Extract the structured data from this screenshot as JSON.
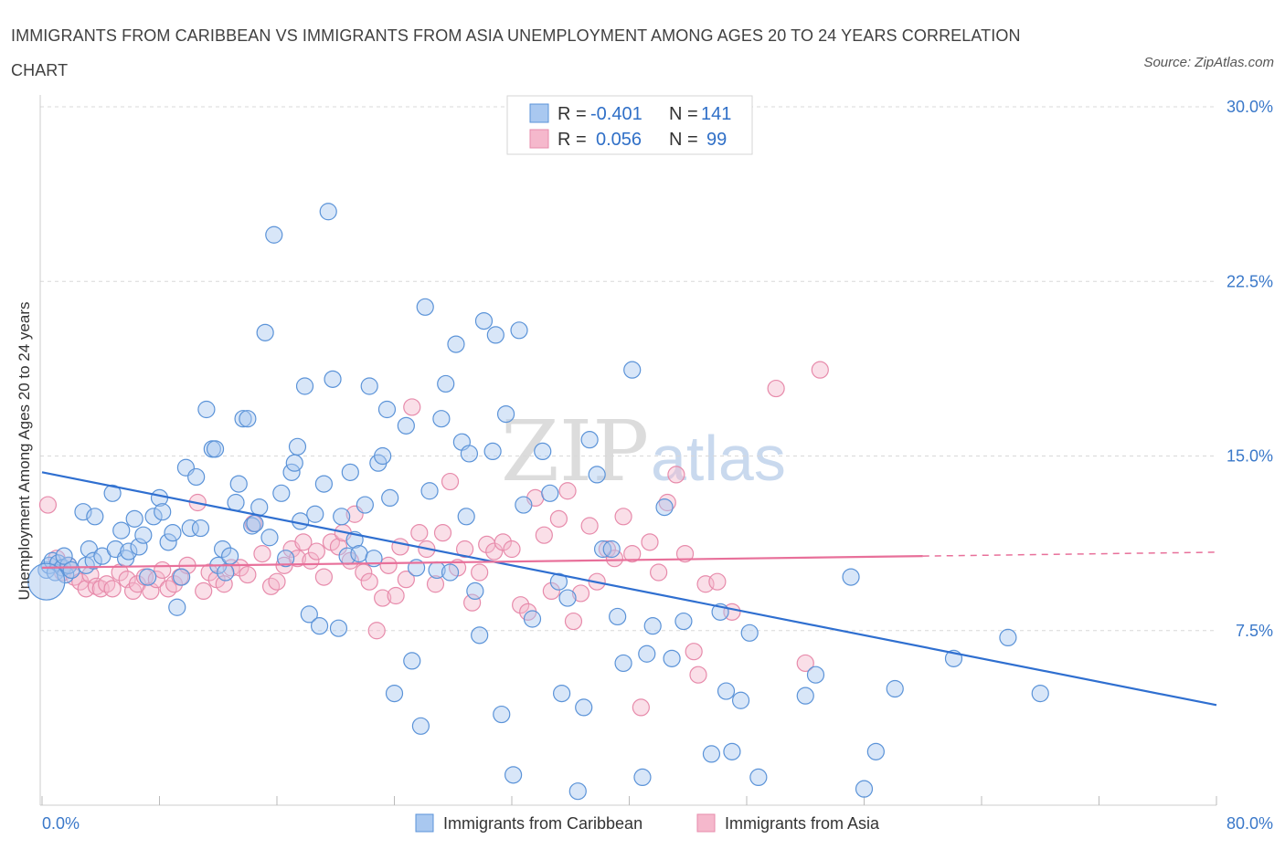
{
  "header": {
    "title": "IMMIGRANTS FROM CARIBBEAN VS IMMIGRANTS FROM ASIA UNEMPLOYMENT AMONG AGES 20 TO 24 YEARS CORRELATION CHART",
    "source": "Source: ZipAtlas.com"
  },
  "watermark": {
    "zip": "ZIP",
    "atlas": "atlas"
  },
  "legend": {
    "r_label": "R =",
    "n_label": "N =",
    "series": [
      {
        "r": "-0.401",
        "n": "141"
      },
      {
        "r": "0.056",
        "n": "99"
      }
    ]
  },
  "bottom_legend": [
    "Immigrants from Caribbean",
    "Immigrants from Asia"
  ],
  "colors": {
    "caribbean_fill": "#a9c8f0",
    "caribbean_stroke": "#5b93d8",
    "caribbean_line": "#2f6fd0",
    "asia_fill": "#f5b8cc",
    "asia_stroke": "#e78bab",
    "asia_line": "#e8709a",
    "axis_text": "#3a78c9",
    "grid": "#d8d8d8"
  },
  "chart_data": {
    "type": "scatter",
    "title": "IMMIGRANTS FROM CARIBBEAN VS IMMIGRANTS FROM ASIA UNEMPLOYMENT AMONG AGES 20 TO 24 YEARS CORRELATION CHART",
    "xlabel": "",
    "ylabel": "Unemployment Among Ages 20 to 24 years",
    "xlim": [
      0,
      80
    ],
    "ylim": [
      0,
      30
    ],
    "x_ticks": [
      "0.0%",
      "80.0%"
    ],
    "y_ticks": [
      "7.5%",
      "15.0%",
      "22.5%",
      "30.0%"
    ],
    "y_tick_values": [
      7.5,
      15.0,
      22.5,
      30.0
    ],
    "grid": true,
    "legend_position": "top-center",
    "series": [
      {
        "name": "Immigrants from Caribbean",
        "r": -0.401,
        "n": 141,
        "trend": {
          "x": [
            0,
            80
          ],
          "y": [
            14.3,
            4.3
          ]
        },
        "points": [
          [
            0.3,
            10.1
          ],
          [
            0.5,
            10.3
          ],
          [
            0.7,
            10.5
          ],
          [
            0.9,
            10.0
          ],
          [
            1.1,
            10.4
          ],
          [
            1.4,
            10.2
          ],
          [
            1.6,
            9.9
          ],
          [
            1.8,
            10.3
          ],
          [
            1.5,
            10.7
          ],
          [
            2.0,
            10.1
          ],
          [
            2.8,
            12.6
          ],
          [
            3.0,
            10.3
          ],
          [
            3.2,
            11.0
          ],
          [
            3.5,
            10.5
          ],
          [
            3.6,
            12.4
          ],
          [
            4.1,
            10.7
          ],
          [
            4.8,
            13.4
          ],
          [
            5.0,
            11.0
          ],
          [
            5.4,
            11.8
          ],
          [
            5.7,
            10.6
          ],
          [
            5.9,
            10.9
          ],
          [
            6.3,
            12.3
          ],
          [
            6.6,
            11.1
          ],
          [
            6.9,
            11.6
          ],
          [
            7.2,
            9.8
          ],
          [
            7.6,
            12.4
          ],
          [
            8.0,
            13.2
          ],
          [
            8.2,
            12.6
          ],
          [
            8.6,
            11.3
          ],
          [
            8.9,
            11.7
          ],
          [
            9.2,
            8.5
          ],
          [
            9.5,
            9.8
          ],
          [
            9.8,
            14.5
          ],
          [
            10.1,
            11.9
          ],
          [
            10.5,
            14.1
          ],
          [
            10.8,
            11.9
          ],
          [
            11.2,
            17.0
          ],
          [
            11.6,
            15.3
          ],
          [
            11.8,
            15.3
          ],
          [
            12.0,
            10.3
          ],
          [
            12.3,
            11.0
          ],
          [
            12.5,
            10.0
          ],
          [
            12.8,
            10.7
          ],
          [
            13.2,
            13.0
          ],
          [
            13.4,
            13.8
          ],
          [
            13.7,
            16.6
          ],
          [
            14.0,
            16.6
          ],
          [
            14.3,
            12.0
          ],
          [
            14.5,
            12.1
          ],
          [
            14.8,
            12.8
          ],
          [
            15.2,
            20.3
          ],
          [
            15.5,
            11.5
          ],
          [
            15.8,
            24.5
          ],
          [
            16.3,
            13.4
          ],
          [
            16.6,
            10.6
          ],
          [
            17.0,
            14.3
          ],
          [
            17.2,
            14.7
          ],
          [
            17.4,
            15.4
          ],
          [
            17.6,
            12.2
          ],
          [
            17.9,
            18.0
          ],
          [
            18.2,
            8.2
          ],
          [
            18.6,
            12.5
          ],
          [
            18.9,
            7.7
          ],
          [
            19.2,
            13.8
          ],
          [
            19.5,
            25.5
          ],
          [
            19.8,
            18.3
          ],
          [
            20.2,
            7.6
          ],
          [
            20.4,
            12.4
          ],
          [
            20.8,
            10.7
          ],
          [
            21.0,
            14.3
          ],
          [
            21.3,
            11.4
          ],
          [
            21.6,
            10.8
          ],
          [
            22.0,
            12.9
          ],
          [
            22.3,
            18.0
          ],
          [
            22.6,
            10.6
          ],
          [
            22.9,
            14.7
          ],
          [
            23.2,
            15.0
          ],
          [
            23.5,
            17.0
          ],
          [
            23.7,
            13.2
          ],
          [
            24.0,
            4.8
          ],
          [
            24.8,
            16.3
          ],
          [
            25.2,
            6.2
          ],
          [
            25.5,
            10.2
          ],
          [
            25.8,
            3.4
          ],
          [
            26.1,
            21.4
          ],
          [
            26.4,
            13.5
          ],
          [
            26.9,
            10.1
          ],
          [
            27.2,
            16.6
          ],
          [
            27.5,
            18.1
          ],
          [
            27.8,
            10.0
          ],
          [
            28.2,
            19.8
          ],
          [
            28.6,
            15.6
          ],
          [
            28.9,
            12.4
          ],
          [
            29.1,
            15.1
          ],
          [
            29.5,
            9.2
          ],
          [
            29.8,
            7.3
          ],
          [
            30.1,
            20.8
          ],
          [
            30.7,
            15.2
          ],
          [
            30.9,
            20.2
          ],
          [
            31.3,
            3.9
          ],
          [
            31.6,
            16.8
          ],
          [
            32.1,
            1.3
          ],
          [
            32.5,
            20.4
          ],
          [
            32.8,
            12.9
          ],
          [
            33.4,
            8.0
          ],
          [
            34.1,
            15.2
          ],
          [
            34.6,
            13.4
          ],
          [
            35.2,
            9.6
          ],
          [
            35.4,
            4.8
          ],
          [
            35.8,
            8.9
          ],
          [
            36.5,
            0.6
          ],
          [
            36.9,
            4.2
          ],
          [
            37.3,
            15.7
          ],
          [
            37.8,
            14.2
          ],
          [
            38.2,
            11.0
          ],
          [
            38.8,
            11.0
          ],
          [
            39.2,
            8.1
          ],
          [
            39.6,
            6.1
          ],
          [
            40.2,
            18.7
          ],
          [
            40.9,
            1.2
          ],
          [
            41.2,
            6.5
          ],
          [
            41.6,
            7.7
          ],
          [
            42.4,
            12.8
          ],
          [
            42.9,
            6.3
          ],
          [
            43.7,
            7.9
          ],
          [
            45.6,
            2.2
          ],
          [
            46.2,
            8.3
          ],
          [
            46.6,
            4.9
          ],
          [
            47.0,
            2.3
          ],
          [
            47.6,
            4.5
          ],
          [
            48.2,
            7.4
          ],
          [
            48.8,
            1.2
          ],
          [
            52.0,
            4.7
          ],
          [
            52.7,
            5.6
          ],
          [
            55.1,
            9.8
          ],
          [
            56.0,
            0.7
          ],
          [
            56.8,
            2.3
          ],
          [
            58.1,
            5.0
          ],
          [
            62.1,
            6.3
          ],
          [
            65.8,
            7.2
          ],
          [
            68.0,
            4.8
          ]
        ]
      },
      {
        "name": "Immigrants from Asia",
        "r": 0.056,
        "n": 99,
        "trend": {
          "x": [
            0,
            60
          ],
          "y": [
            10.2,
            10.7
          ]
        },
        "points": [
          [
            0.4,
            12.9
          ],
          [
            1.0,
            10.6
          ],
          [
            1.4,
            10.0
          ],
          [
            1.8,
            10.3
          ],
          [
            2.2,
            9.8
          ],
          [
            2.6,
            9.6
          ],
          [
            3.0,
            9.3
          ],
          [
            3.3,
            9.9
          ],
          [
            3.7,
            9.4
          ],
          [
            4.0,
            9.3
          ],
          [
            4.4,
            9.5
          ],
          [
            4.8,
            9.3
          ],
          [
            5.3,
            10.0
          ],
          [
            5.8,
            9.7
          ],
          [
            6.2,
            9.2
          ],
          [
            6.5,
            9.5
          ],
          [
            7.0,
            9.8
          ],
          [
            7.4,
            9.2
          ],
          [
            7.8,
            9.7
          ],
          [
            8.2,
            10.1
          ],
          [
            8.6,
            9.3
          ],
          [
            9.0,
            9.5
          ],
          [
            9.4,
            9.8
          ],
          [
            9.9,
            10.3
          ],
          [
            10.6,
            13.0
          ],
          [
            11.0,
            9.2
          ],
          [
            11.4,
            10.0
          ],
          [
            11.9,
            9.7
          ],
          [
            12.4,
            9.5
          ],
          [
            12.9,
            10.2
          ],
          [
            13.5,
            10.2
          ],
          [
            14.0,
            9.9
          ],
          [
            14.4,
            12.1
          ],
          [
            15.0,
            10.8
          ],
          [
            15.6,
            9.4
          ],
          [
            16.0,
            9.6
          ],
          [
            16.5,
            10.3
          ],
          [
            17.0,
            11.0
          ],
          [
            17.4,
            10.6
          ],
          [
            17.8,
            11.3
          ],
          [
            18.3,
            10.5
          ],
          [
            18.7,
            10.9
          ],
          [
            19.2,
            9.8
          ],
          [
            19.7,
            11.3
          ],
          [
            20.2,
            11.1
          ],
          [
            20.5,
            11.7
          ],
          [
            21.0,
            10.5
          ],
          [
            21.3,
            12.5
          ],
          [
            21.9,
            10.0
          ],
          [
            22.3,
            9.6
          ],
          [
            22.8,
            7.5
          ],
          [
            23.2,
            8.9
          ],
          [
            23.6,
            10.3
          ],
          [
            24.1,
            9.0
          ],
          [
            24.4,
            11.1
          ],
          [
            24.8,
            9.7
          ],
          [
            25.2,
            17.1
          ],
          [
            25.7,
            11.7
          ],
          [
            26.2,
            11.0
          ],
          [
            26.8,
            9.5
          ],
          [
            27.3,
            11.7
          ],
          [
            27.8,
            13.9
          ],
          [
            28.3,
            10.2
          ],
          [
            28.8,
            11.0
          ],
          [
            29.3,
            8.7
          ],
          [
            29.8,
            10.0
          ],
          [
            30.3,
            11.2
          ],
          [
            30.8,
            10.9
          ],
          [
            31.4,
            11.3
          ],
          [
            32.0,
            11.0
          ],
          [
            32.6,
            8.6
          ],
          [
            33.1,
            8.3
          ],
          [
            33.6,
            13.2
          ],
          [
            34.2,
            11.6
          ],
          [
            34.7,
            9.2
          ],
          [
            35.2,
            12.3
          ],
          [
            35.8,
            13.5
          ],
          [
            36.2,
            7.9
          ],
          [
            36.7,
            9.1
          ],
          [
            37.3,
            12.0
          ],
          [
            37.8,
            9.6
          ],
          [
            38.5,
            11.0
          ],
          [
            39.0,
            10.6
          ],
          [
            39.6,
            12.4
          ],
          [
            40.2,
            10.8
          ],
          [
            40.8,
            4.2
          ],
          [
            41.4,
            11.3
          ],
          [
            42.0,
            10.0
          ],
          [
            42.6,
            13.0
          ],
          [
            43.2,
            14.2
          ],
          [
            43.8,
            10.8
          ],
          [
            44.4,
            6.6
          ],
          [
            44.7,
            5.6
          ],
          [
            45.2,
            9.5
          ],
          [
            46.0,
            9.6
          ],
          [
            47.0,
            8.3
          ],
          [
            50.0,
            17.9
          ],
          [
            52.0,
            6.1
          ],
          [
            53.0,
            18.7
          ]
        ]
      }
    ]
  }
}
